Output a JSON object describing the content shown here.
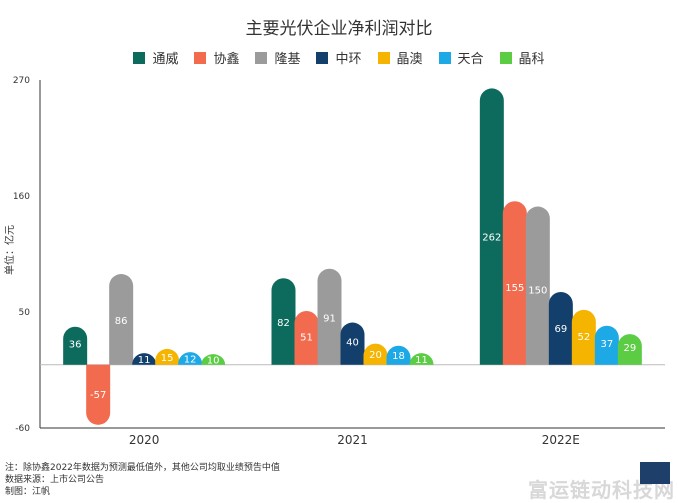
{
  "chart_data": {
    "type": "bar",
    "title": "主要光伏企业净利润对比",
    "ylabel": "单位：亿元",
    "xlabel": "",
    "categories": [
      "2020",
      "2021",
      "2022E"
    ],
    "yticks": [
      270,
      160,
      50,
      -60
    ],
    "ylim": [
      -60,
      270
    ],
    "grid": false,
    "legend_position": "top",
    "series": [
      {
        "name": "通威",
        "color": "#0d6b5e",
        "values": [
          36,
          82,
          262
        ]
      },
      {
        "name": "协鑫",
        "color": "#f26b4f",
        "values": [
          -57,
          51,
          155
        ]
      },
      {
        "name": "隆基",
        "color": "#9b9b9b",
        "values": [
          86,
          91,
          150
        ]
      },
      {
        "name": "中环",
        "color": "#123f6b",
        "values": [
          11,
          40,
          69
        ]
      },
      {
        "name": "晶澳",
        "color": "#f5b400",
        "values": [
          15,
          20,
          52
        ]
      },
      {
        "name": "天合",
        "color": "#1da8e6",
        "values": [
          12,
          18,
          37
        ]
      },
      {
        "name": "晶科",
        "color": "#5bcc43",
        "values": [
          10,
          11,
          29
        ]
      }
    ]
  },
  "notes": {
    "line1": "注：除协鑫2022年数据为预测最低值外，其他公司均取业绩预告中值",
    "line2": "数据来源：上市公司公告",
    "line3": "制图：江帆"
  },
  "watermark": "富运链动科技网"
}
